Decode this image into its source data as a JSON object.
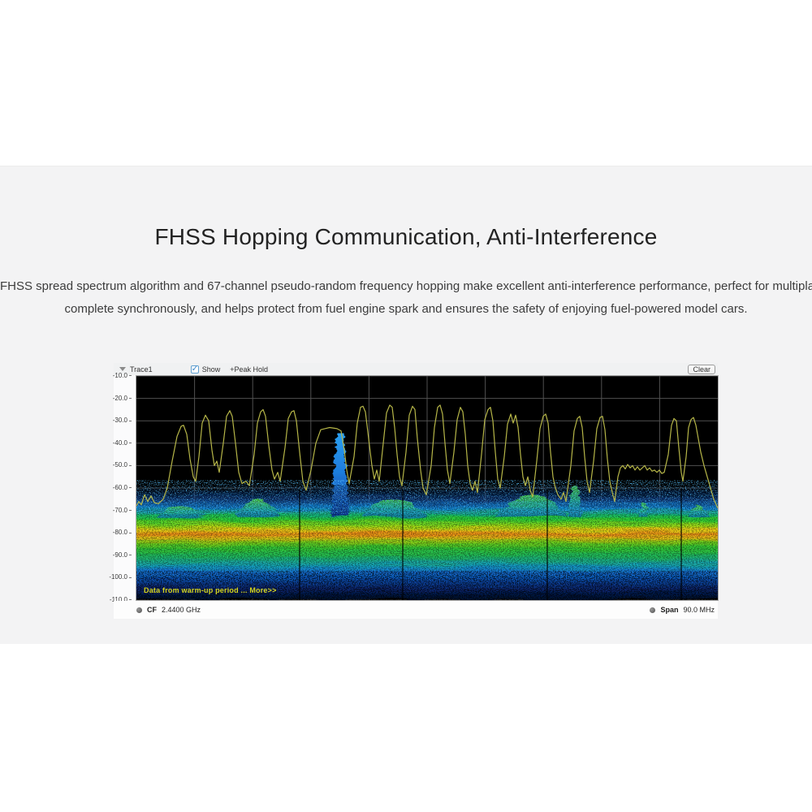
{
  "page": {
    "title": "FHSS Hopping Communication, Anti-Interference",
    "description_line1": "FHSS spread spectrum algorithm and 67-channel pseudo-random frequency hopping make excellent anti-interference performance, perfect for multiplayer",
    "description_line2": "complete synchronously, and helps protect from fuel engine spark and ensures the safety of enjoying fuel-powered model cars."
  },
  "analyzer": {
    "toolbar": {
      "trace_label": "Trace1",
      "show_label": "Show",
      "show_checked": true,
      "peak_hold_label": "+Peak Hold",
      "clear_button": "Clear"
    },
    "overlay_note": "Data from warm-up period ... More>>",
    "status": {
      "cf_label": "CF",
      "cf_value": "2.4400 GHz",
      "span_label": "Span",
      "span_value": "90.0 MHz"
    }
  },
  "chart_data": {
    "type": "line",
    "legend": "Trace1 +Peak Hold",
    "ylim": [
      -110,
      -10
    ],
    "y_ticks": [
      "-10.0",
      "-20.0",
      "-30.0",
      "-40.0",
      "-50.0",
      "-60.0",
      "-70.0",
      "-80.0",
      "-90.0",
      "-100.0",
      "-110.0"
    ],
    "x_divisions": 10,
    "center_frequency": "2.4400 GHz",
    "span": "90.0 MHz",
    "grid": true,
    "colors": {
      "trace": "#b6b648",
      "grid": "#515151",
      "plot_bg": "#000000",
      "note_text": "#d4d41e"
    },
    "series": [
      {
        "name": "Trace1",
        "color": "#b6b648",
        "points": [
          [
            0,
            -68
          ],
          [
            3,
            -66
          ],
          [
            6,
            -67.5
          ],
          [
            10,
            -63
          ],
          [
            14,
            -66
          ],
          [
            18,
            -63.5
          ],
          [
            22,
            -66.5
          ],
          [
            27,
            -67
          ],
          [
            33,
            -65
          ],
          [
            38,
            -60
          ],
          [
            44,
            -48
          ],
          [
            50,
            -37
          ],
          [
            55,
            -32.5
          ],
          [
            58,
            -32
          ],
          [
            62,
            -36
          ],
          [
            66,
            -47
          ],
          [
            70,
            -55
          ],
          [
            73,
            -57
          ],
          [
            77,
            -46
          ],
          [
            81,
            -31
          ],
          [
            85,
            -27.5
          ],
          [
            89,
            -30
          ],
          [
            93,
            -43
          ],
          [
            96,
            -50
          ],
          [
            99,
            -48
          ],
          [
            102,
            -53
          ],
          [
            107,
            -40
          ],
          [
            111,
            -28
          ],
          [
            115,
            -25.5
          ],
          [
            118,
            -28
          ],
          [
            122,
            -40
          ],
          [
            126,
            -53
          ],
          [
            130,
            -58
          ],
          [
            135,
            -57
          ],
          [
            139,
            -59
          ],
          [
            145,
            -45
          ],
          [
            149,
            -31
          ],
          [
            153,
            -26
          ],
          [
            156,
            -25
          ],
          [
            159,
            -28
          ],
          [
            163,
            -41
          ],
          [
            167,
            -52
          ],
          [
            170,
            -56
          ],
          [
            174,
            -53
          ],
          [
            177,
            -57
          ],
          [
            183,
            -42
          ],
          [
            187,
            -29
          ],
          [
            191,
            -26
          ],
          [
            194,
            -25.5
          ],
          [
            197,
            -30
          ],
          [
            201,
            -44
          ],
          [
            205,
            -57
          ],
          [
            209,
            -61
          ],
          [
            215,
            -52
          ],
          [
            221,
            -40
          ],
          [
            227,
            -34
          ],
          [
            232,
            -33.5
          ],
          [
            238,
            -33
          ],
          [
            247,
            -33.5
          ],
          [
            252,
            -34.5
          ],
          [
            256,
            -43
          ],
          [
            259,
            -52
          ],
          [
            262,
            -58
          ],
          [
            268,
            -46
          ],
          [
            272,
            -31
          ],
          [
            276,
            -24
          ],
          [
            279,
            -23.5
          ],
          [
            282,
            -26
          ],
          [
            286,
            -38
          ],
          [
            290,
            -50
          ],
          [
            293,
            -56
          ],
          [
            296,
            -52
          ],
          [
            299,
            -57
          ],
          [
            304,
            -40
          ],
          [
            308,
            -26.5
          ],
          [
            312,
            -23
          ],
          [
            315,
            -24
          ],
          [
            318,
            -33
          ],
          [
            321,
            -45
          ],
          [
            324,
            -55
          ],
          [
            327,
            -59
          ],
          [
            332,
            -44
          ],
          [
            336,
            -27.5
          ],
          [
            340,
            -23.5
          ],
          [
            343,
            -25
          ],
          [
            346,
            -38
          ],
          [
            350,
            -52
          ],
          [
            353,
            -60
          ],
          [
            357,
            -63
          ],
          [
            363,
            -50
          ],
          [
            367,
            -33
          ],
          [
            371,
            -24
          ],
          [
            374,
            -23
          ],
          [
            377,
            -27
          ],
          [
            380,
            -40
          ],
          [
            383,
            -52
          ],
          [
            386,
            -58
          ],
          [
            391,
            -44
          ],
          [
            395,
            -29.5
          ],
          [
            399,
            -24
          ],
          [
            402,
            -26
          ],
          [
            405,
            -36
          ],
          [
            408,
            -50
          ],
          [
            411,
            -58
          ],
          [
            414,
            -61
          ],
          [
            417,
            -57
          ],
          [
            420,
            -62
          ],
          [
            425,
            -45
          ],
          [
            429,
            -29.5
          ],
          [
            433,
            -25
          ],
          [
            436,
            -24
          ],
          [
            439,
            -30
          ],
          [
            442,
            -44
          ],
          [
            445,
            -56
          ],
          [
            448,
            -60
          ],
          [
            453,
            -46
          ],
          [
            457,
            -31.5
          ],
          [
            461,
            -27
          ],
          [
            464,
            -31
          ],
          [
            467,
            -27.5
          ],
          [
            470,
            -33
          ],
          [
            473,
            -45
          ],
          [
            476,
            -55
          ],
          [
            479,
            -59
          ],
          [
            482,
            -55
          ],
          [
            485,
            -61
          ],
          [
            488,
            -64
          ],
          [
            493,
            -48
          ],
          [
            497,
            -33.5
          ],
          [
            501,
            -28
          ],
          [
            504,
            -27
          ],
          [
            507,
            -31
          ],
          [
            510,
            -44
          ],
          [
            513,
            -55
          ],
          [
            516,
            -60
          ],
          [
            519,
            -63
          ],
          [
            523,
            -65
          ],
          [
            526,
            -62
          ],
          [
            529,
            -66
          ],
          [
            535,
            -50
          ],
          [
            539,
            -34.5
          ],
          [
            543,
            -29
          ],
          [
            546,
            -28
          ],
          [
            549,
            -33
          ],
          [
            552,
            -46
          ],
          [
            555,
            -57
          ],
          [
            558,
            -62
          ],
          [
            563,
            -48
          ],
          [
            567,
            -33.5
          ],
          [
            571,
            -28.5
          ],
          [
            574,
            -28
          ],
          [
            577,
            -34
          ],
          [
            580,
            -47
          ],
          [
            583,
            -57
          ],
          [
            586,
            -62
          ],
          [
            589,
            -66
          ],
          [
            593,
            -55
          ],
          [
            596,
            -51
          ],
          [
            599,
            -50
          ],
          [
            602,
            -51.5
          ],
          [
            605,
            -49.5
          ],
          [
            608,
            -51
          ],
          [
            611,
            -50
          ],
          [
            614,
            -52
          ],
          [
            617,
            -50.5
          ],
          [
            620,
            -52
          ],
          [
            623,
            -51
          ],
          [
            626,
            -50
          ],
          [
            629,
            -52
          ],
          [
            632,
            -51
          ],
          [
            635,
            -52.5
          ],
          [
            638,
            -52
          ],
          [
            641,
            -53
          ],
          [
            644,
            -52
          ],
          [
            647,
            -53.5
          ],
          [
            650,
            -53
          ],
          [
            655,
            -45
          ],
          [
            659,
            -32
          ],
          [
            662,
            -29
          ],
          [
            665,
            -30
          ],
          [
            668,
            -42
          ],
          [
            671,
            -53
          ],
          [
            673,
            -57
          ],
          [
            677,
            -46
          ],
          [
            680,
            -33
          ],
          [
            683,
            -29.5
          ],
          [
            686,
            -28.5
          ],
          [
            689,
            -32
          ],
          [
            692,
            -38
          ],
          [
            695,
            -44
          ],
          [
            699,
            -50
          ],
          [
            703,
            -55
          ],
          [
            707,
            -60
          ],
          [
            711,
            -65
          ],
          [
            716,
            -69
          ]
        ]
      }
    ],
    "waterfall": {
      "top_edge_db": -70,
      "orange_band_db": -80,
      "floor_db": -110,
      "bumps": [
        {
          "x": 55,
          "halfWidth": 30,
          "apexDb": -67
        },
        {
          "x": 150,
          "halfWidth": 28,
          "apexDb": -64
        },
        {
          "x": 318,
          "halfWidth": 40,
          "apexDb": -64
        },
        {
          "x": 487,
          "halfWidth": 44,
          "apexDb": -62.5
        },
        {
          "x": 540,
          "halfWidth": 9,
          "apexDb": -57.5
        },
        {
          "x": 625,
          "halfWidth": 6,
          "apexDb": -66
        },
        {
          "x": 692,
          "halfWidth": 13,
          "apexDb": -66.5
        }
      ],
      "spike": {
        "x": 251,
        "baseHalfWidth": 11,
        "topHalfWidth": 4,
        "baseDb": -72,
        "topDb": -35
      },
      "seams_x": [
        200,
        327,
        505,
        670
      ]
    }
  }
}
